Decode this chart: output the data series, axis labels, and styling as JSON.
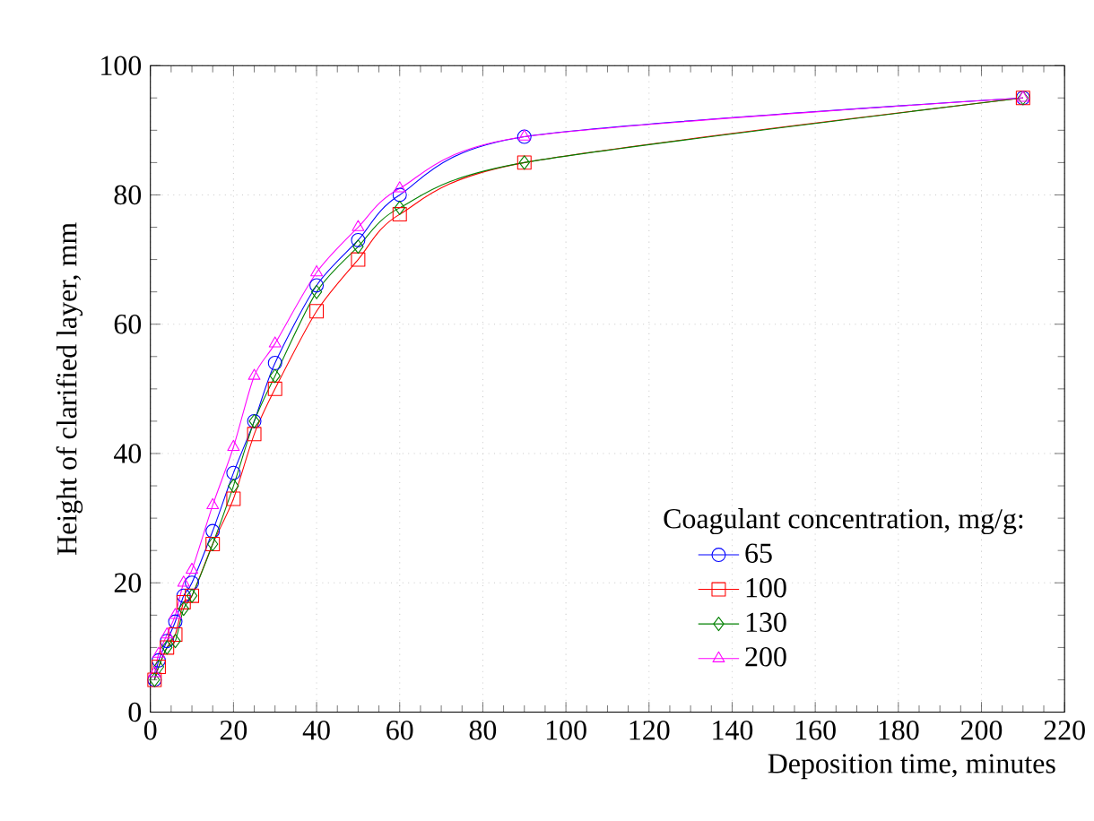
{
  "chart_data": {
    "type": "line",
    "xlabel": "Deposition time, minutes",
    "ylabel": "Height of clarified layer, mm",
    "legend_title": "Coagulant concentration, mg/g:",
    "x": [
      1,
      2,
      4,
      6,
      8,
      10,
      15,
      20,
      25,
      30,
      40,
      50,
      60,
      90,
      210
    ],
    "series": [
      {
        "name": "65",
        "color": "#0000ff",
        "marker": "circle",
        "values": [
          5,
          8,
          11,
          14,
          18,
          20,
          28,
          37,
          45,
          54,
          66,
          73,
          80,
          89,
          95
        ]
      },
      {
        "name": "100",
        "color": "#ff0000",
        "marker": "square",
        "values": [
          5,
          7,
          10,
          12,
          17,
          18,
          26,
          33,
          43,
          50,
          62,
          70,
          77,
          85,
          95
        ]
      },
      {
        "name": "130",
        "color": "#008000",
        "marker": "diamond",
        "values": [
          5,
          7,
          10,
          11,
          16,
          18,
          26,
          35,
          45,
          52,
          65,
          72,
          78,
          85,
          95
        ]
      },
      {
        "name": "200",
        "color": "#ff00ff",
        "marker": "triangle",
        "values": [
          6,
          9,
          12,
          15,
          20,
          22,
          32,
          41,
          52,
          57,
          68,
          75,
          81,
          89,
          95
        ]
      }
    ],
    "xlim": [
      0,
      220
    ],
    "ylim": [
      0,
      100
    ],
    "xticks": [
      0,
      20,
      40,
      60,
      80,
      100,
      120,
      140,
      160,
      180,
      200,
      220
    ],
    "yticks": [
      0,
      20,
      40,
      60,
      80,
      100
    ],
    "grid": true,
    "legend": "bottom right"
  }
}
